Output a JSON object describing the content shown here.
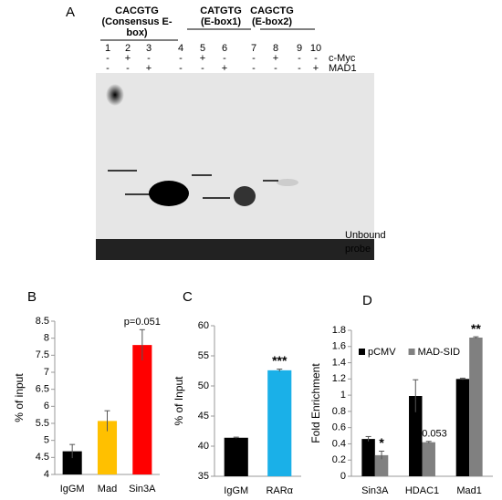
{
  "panel_a": {
    "panel": "A",
    "groups": [
      {
        "lines": [
          "CACGTG",
          "(Consensus E-",
          "box)"
        ]
      },
      {
        "lines": [
          "CATGTG",
          "(E-box1)"
        ]
      },
      {
        "lines": [
          "CAGCTG",
          "(E-box2)"
        ]
      }
    ],
    "lanes": [
      "1",
      "2",
      "3",
      "4",
      "5",
      "6",
      "7",
      "8",
      "9",
      "10"
    ],
    "rows": [
      {
        "name": "c-Myc",
        "signs": [
          "-",
          "+",
          "-",
          "-",
          "+",
          "-",
          "-",
          "+",
          "-",
          "-"
        ]
      },
      {
        "name": "MAD1",
        "signs": [
          "-",
          "-",
          "+",
          "-",
          "-",
          "+",
          "-",
          "-",
          "-",
          "+"
        ]
      }
    ],
    "probe_label": [
      "Unbound",
      "probe"
    ]
  },
  "chart_data": [
    {
      "type": "bar",
      "panel": "B",
      "ylabel": "% of input",
      "categories": [
        "IgGM",
        "Mad",
        "Sin3A"
      ],
      "values": [
        4.68,
        5.57,
        7.8
      ],
      "errors": [
        0.2,
        0.3,
        0.45
      ],
      "colors": [
        "#000000",
        "#ffc000",
        "#ff0000"
      ],
      "ylim": [
        4,
        8.5
      ],
      "yticks": [
        4,
        4.5,
        5,
        5.5,
        6,
        6.5,
        7,
        7.5,
        8,
        8.5
      ],
      "annotations": [
        {
          "text": "p=0.051",
          "category": "Sin3A"
        }
      ]
    },
    {
      "type": "bar",
      "panel": "C",
      "ylabel": "% of Input",
      "categories": [
        "IgGM",
        "RARα"
      ],
      "values": [
        41.4,
        52.6
      ],
      "errors": [
        0.1,
        0.2
      ],
      "colors": [
        "#000000",
        "#1ab0e8"
      ],
      "ylim": [
        35,
        60
      ],
      "yticks": [
        35,
        40,
        45,
        50,
        55,
        60
      ],
      "annotations": [
        {
          "text": "***",
          "category": "RARα"
        }
      ]
    },
    {
      "type": "bar",
      "panel": "D",
      "ylabel": "Fold Enrichment",
      "categories": [
        "Sin3A",
        "HDAC1",
        "Mad1"
      ],
      "series": [
        {
          "name": "pCMV",
          "color": "#000000",
          "values": [
            0.46,
            0.99,
            1.2
          ],
          "errors": [
            0.03,
            0.2,
            0.01
          ]
        },
        {
          "name": "MAD-SID",
          "color": "#808080",
          "values": [
            0.26,
            0.42,
            1.71
          ],
          "errors": [
            0.05,
            0.01,
            0.01
          ]
        }
      ],
      "ylim": [
        0,
        1.8
      ],
      "yticks": [
        0,
        0.2,
        0.4,
        0.6,
        0.8,
        1,
        1.2,
        1.4,
        1.6,
        1.8
      ],
      "legend": "top-left",
      "annotations": [
        {
          "text": "*",
          "category": "Sin3A",
          "series": "MAD-SID"
        },
        {
          "text": "p=0.053",
          "category": "HDAC1",
          "series": "MAD-SID"
        },
        {
          "text": "**",
          "category": "Mad1",
          "series": "MAD-SID"
        }
      ]
    }
  ]
}
